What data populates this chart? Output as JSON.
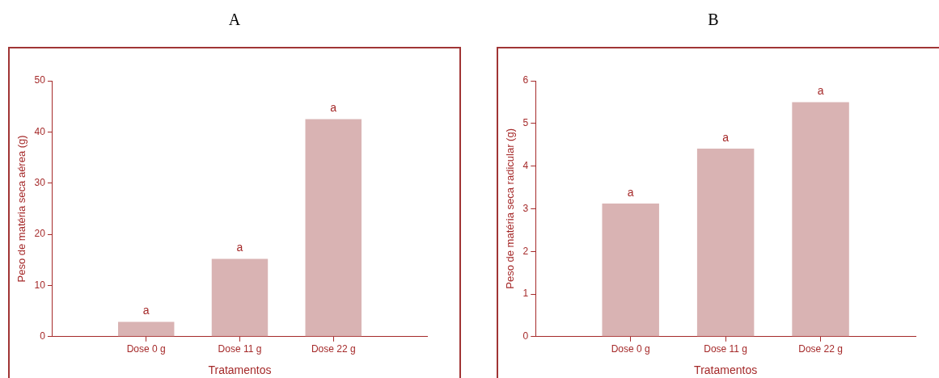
{
  "chart_data": [
    {
      "type": "bar",
      "title": "A",
      "xlabel": "Tratamentos",
      "ylabel": "Peso de matéria seca aérea (g)",
      "categories": [
        "Dose 0 g",
        "Dose 11 g",
        "Dose 22 g"
      ],
      "values": [
        2.9,
        15.2,
        42.5
      ],
      "color": "#d9b3b3",
      "ylim": [
        0,
        50
      ],
      "yticks": [
        0,
        10,
        20,
        30,
        40,
        50
      ],
      "grid": false,
      "legend": false,
      "annotations": [
        {
          "text": "a",
          "x": "Dose 0 g",
          "y": 2.9
        },
        {
          "text": "a",
          "x": "Dose 11 g",
          "y": 15.2
        },
        {
          "text": "a",
          "x": "Dose 22 g",
          "y": 42.5
        }
      ]
    },
    {
      "type": "bar",
      "title": "B",
      "xlabel": "Tratamentos",
      "ylabel": "Peso de matéria seca radicular (g)",
      "categories": [
        "Dose 0 g",
        "Dose 11 g",
        "Dose 22 g"
      ],
      "values": [
        3.12,
        4.41,
        5.5
      ],
      "color": "#d9b3b3",
      "ylim": [
        0,
        6
      ],
      "yticks": [
        0,
        1,
        2,
        3,
        4,
        5,
        6
      ],
      "grid": false,
      "legend": false,
      "annotations": [
        {
          "text": "a",
          "x": "Dose 0 g",
          "y": 3.12
        },
        {
          "text": "a",
          "x": "Dose 11 g",
          "y": 4.41
        },
        {
          "text": "a",
          "x": "Dose 22 g",
          "y": 5.5
        }
      ]
    }
  ]
}
